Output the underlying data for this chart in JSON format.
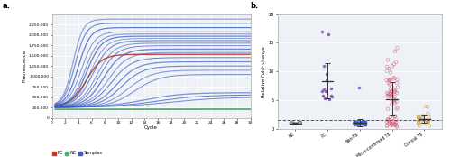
{
  "panel_a": {
    "ylabel": "Fluorescence",
    "xlabel": "Cycle",
    "ylim": [
      0,
      2500000
    ],
    "xlim": [
      0,
      30
    ],
    "yticks": [
      0,
      250000,
      500000,
      750000,
      1000000,
      1250000,
      1500000,
      1750000,
      2000000,
      2250000
    ],
    "ytick_labels": [
      "0",
      "250,000",
      "500,000",
      "750,000",
      "1,000,000",
      "1,250,000",
      "1,500,000",
      "1,750,000",
      "2,000,000",
      "2,250,000"
    ],
    "xticks": [
      0,
      2,
      4,
      6,
      8,
      10,
      12,
      14,
      16,
      18,
      20,
      22,
      24,
      26,
      28,
      30
    ],
    "pc_color": "#c0392b",
    "nc_color": "#5aad6f",
    "sample_color": "#3a5bbf",
    "bg_color": "#eef2f7",
    "grid_color": "#ffffff"
  },
  "panel_b": {
    "ylabel": "Relative Fold- change",
    "ylim": [
      0,
      20
    ],
    "yticks": [
      0,
      5,
      10,
      15,
      20
    ],
    "cutoff": 1.6,
    "groups": [
      "NC",
      "PC",
      "Non-TB",
      "Micro-confirmed TB",
      "Clinical TB"
    ],
    "nc_color": "#555555",
    "pc_color": "#7b4fa8",
    "nontb_color": "#3a5bbf",
    "microtb_color": "#d9607a",
    "clinicaltb_color": "#c9953c",
    "bg_color": "#eef2f7",
    "grid_color": "#ffffff",
    "errorbar_color": "#333333",
    "cutoff_color": "#555555"
  },
  "fig_width": 5.0,
  "fig_height": 1.74,
  "dpi": 100
}
